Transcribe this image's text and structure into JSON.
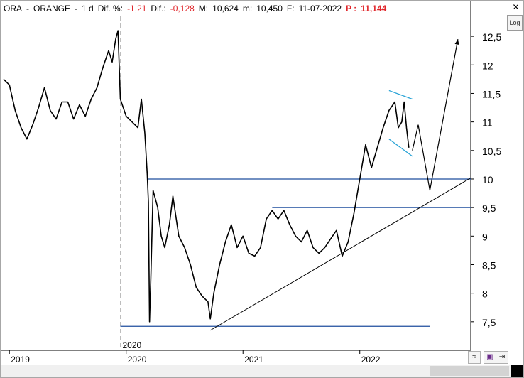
{
  "header": {
    "symbol": "ORA",
    "dash1": "-",
    "name": "ORANGE",
    "dash2": "-",
    "period": "1 d",
    "dif_pct_label": "Dif. %:",
    "dif_pct_value": "-1,21",
    "dif_label": "Dif.:",
    "dif_value": "-0,128",
    "max_label": "M:",
    "max_value": "10,624",
    "min_label": "m:",
    "min_value": "10,450",
    "date_label": "F:",
    "date_value": "11-07-2022",
    "price_label": "P :",
    "price_value": "11,144"
  },
  "controls": {
    "close_glyph": "✕",
    "log_label": "Log"
  },
  "colors": {
    "price_line": "#000000",
    "support_line": "#1f4e9e",
    "trend_line": "#000000",
    "channel_line": "#29a3d6",
    "negative_text": "#e0262b"
  },
  "chart_data": {
    "type": "line",
    "title": "",
    "xlabel": "",
    "ylabel": "",
    "x_ticks": [
      "2019",
      "2020",
      "2021",
      "2022"
    ],
    "period_marker_label": "2020",
    "y_ticks": [
      "12,5",
      "12",
      "11,5",
      "11",
      "10,5",
      "10",
      "9,5",
      "9",
      "8,5",
      "8",
      "7,5"
    ],
    "ylim": [
      7.0,
      12.85
    ],
    "xlim": [
      2018.95,
      2022.95
    ],
    "grid": false,
    "series": [
      {
        "values": [
          [
            2018.95,
            11.75
          ],
          [
            2019.0,
            11.65
          ],
          [
            2019.05,
            11.2
          ],
          [
            2019.1,
            10.9
          ],
          [
            2019.15,
            10.7
          ],
          [
            2019.2,
            10.95
          ],
          [
            2019.25,
            11.25
          ],
          [
            2019.3,
            11.6
          ],
          [
            2019.35,
            11.2
          ],
          [
            2019.4,
            11.05
          ],
          [
            2019.45,
            11.35
          ],
          [
            2019.5,
            11.35
          ],
          [
            2019.55,
            11.05
          ],
          [
            2019.6,
            11.3
          ],
          [
            2019.65,
            11.1
          ],
          [
            2019.7,
            11.4
          ],
          [
            2019.75,
            11.6
          ],
          [
            2019.8,
            11.95
          ],
          [
            2019.85,
            12.25
          ],
          [
            2019.88,
            12.05
          ],
          [
            2019.91,
            12.45
          ],
          [
            2019.93,
            12.6
          ],
          [
            2019.95,
            11.4
          ],
          [
            2020.0,
            11.1
          ],
          [
            2020.05,
            11.0
          ],
          [
            2020.1,
            10.9
          ],
          [
            2020.13,
            11.4
          ],
          [
            2020.16,
            10.8
          ],
          [
            2020.18,
            10.1
          ],
          [
            2020.19,
            9.6
          ],
          [
            2020.2,
            7.5
          ],
          [
            2020.21,
            8.2
          ],
          [
            2020.23,
            9.8
          ],
          [
            2020.27,
            9.5
          ],
          [
            2020.3,
            9.0
          ],
          [
            2020.33,
            8.8
          ],
          [
            2020.37,
            9.2
          ],
          [
            2020.4,
            9.7
          ],
          [
            2020.45,
            9.0
          ],
          [
            2020.5,
            8.8
          ],
          [
            2020.55,
            8.5
          ],
          [
            2020.6,
            8.1
          ],
          [
            2020.65,
            7.95
          ],
          [
            2020.7,
            7.85
          ],
          [
            2020.72,
            7.55
          ],
          [
            2020.75,
            8.0
          ],
          [
            2020.8,
            8.5
          ],
          [
            2020.85,
            8.9
          ],
          [
            2020.9,
            9.2
          ],
          [
            2020.95,
            8.8
          ],
          [
            2021.0,
            9.0
          ],
          [
            2021.05,
            8.7
          ],
          [
            2021.1,
            8.65
          ],
          [
            2021.15,
            8.8
          ],
          [
            2021.2,
            9.3
          ],
          [
            2021.25,
            9.45
          ],
          [
            2021.3,
            9.3
          ],
          [
            2021.35,
            9.45
          ],
          [
            2021.4,
            9.2
          ],
          [
            2021.45,
            9.0
          ],
          [
            2021.5,
            8.9
          ],
          [
            2021.55,
            9.1
          ],
          [
            2021.6,
            8.8
          ],
          [
            2021.65,
            8.7
          ],
          [
            2021.7,
            8.8
          ],
          [
            2021.75,
            8.95
          ],
          [
            2021.8,
            9.1
          ],
          [
            2021.85,
            8.65
          ],
          [
            2021.9,
            8.9
          ],
          [
            2021.95,
            9.4
          ],
          [
            2022.0,
            10.0
          ],
          [
            2022.05,
            10.6
          ],
          [
            2022.1,
            10.2
          ],
          [
            2022.15,
            10.55
          ],
          [
            2022.2,
            10.9
          ],
          [
            2022.25,
            11.2
          ],
          [
            2022.3,
            11.35
          ],
          [
            2022.33,
            10.9
          ],
          [
            2022.36,
            11.0
          ],
          [
            2022.38,
            11.35
          ],
          [
            2022.4,
            10.9
          ],
          [
            2022.42,
            10.55
          ]
        ]
      }
    ],
    "annotations": {
      "support_lines": [
        {
          "y": 10.0,
          "x_start": 2020.18,
          "x_end": 2022.95
        },
        {
          "y": 9.5,
          "x_start": 2021.25,
          "x_end": 2022.95
        },
        {
          "y": 7.42,
          "x_start": 2019.95,
          "x_end": 2022.6
        }
      ],
      "trend_line": {
        "from": [
          2020.72,
          7.35
        ],
        "to": [
          2022.95,
          10.02
        ]
      },
      "channel_lines": [
        {
          "from": [
            2022.25,
            11.55
          ],
          "to": [
            2022.45,
            11.4
          ]
        },
        {
          "from": [
            2022.25,
            10.7
          ],
          "to": [
            2022.45,
            10.4
          ]
        }
      ],
      "projection_path": [
        [
          2022.45,
          10.5
        ],
        [
          2022.5,
          10.95
        ],
        [
          2022.6,
          9.8
        ],
        [
          2022.84,
          12.45
        ]
      ]
    }
  }
}
